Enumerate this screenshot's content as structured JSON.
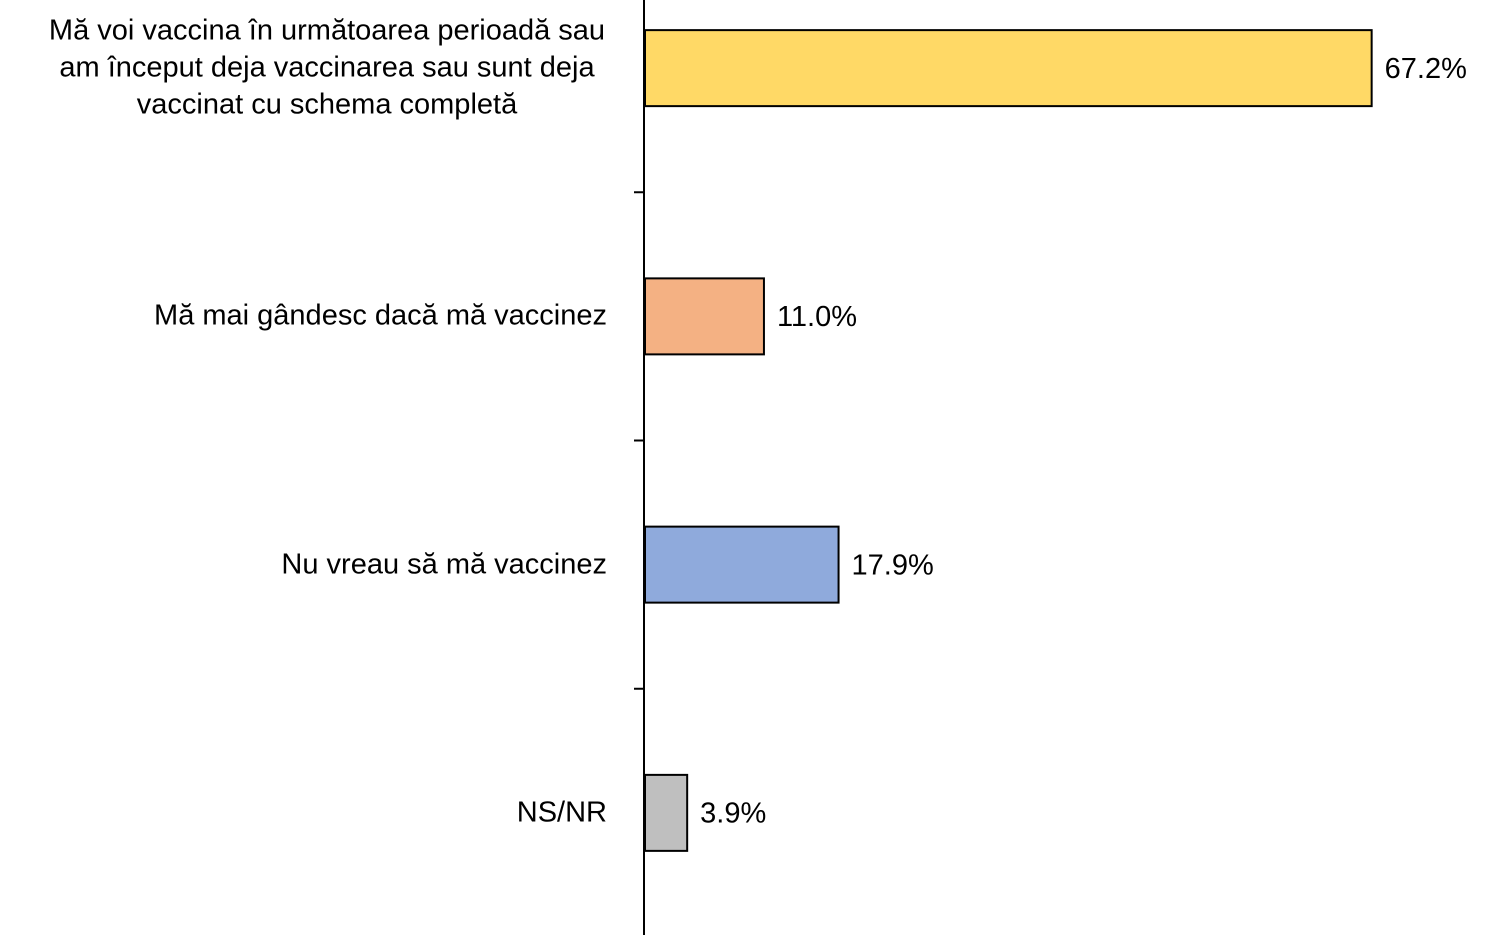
{
  "chart_data": {
    "type": "hbar",
    "categories": [
      "Mă voi vaccina în următoarea perioadă sau am început deja vaccinarea sau sunt deja vaccinat cu schema completă",
      "Mă mai gândesc dacă mă vaccinez",
      "Nu vreau să mă vaccinez",
      "NS/NR"
    ],
    "values": [
      67.2,
      11.0,
      17.9,
      3.9
    ],
    "value_labels": [
      "67.2%",
      "11.0%",
      "17.9%",
      "3.9%"
    ],
    "colors": [
      "#FFD966",
      "#F4B183",
      "#8FAADC",
      "#BFBFBF"
    ],
    "xlim": [
      0,
      75
    ]
  }
}
